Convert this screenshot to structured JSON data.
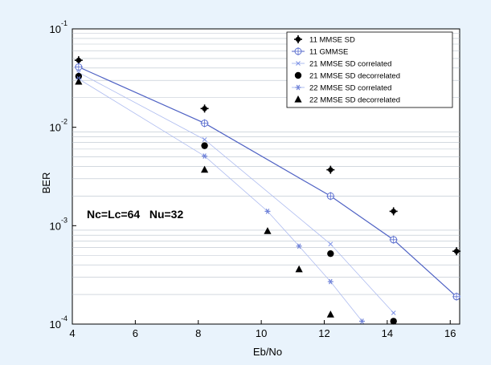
{
  "chart_data": {
    "type": "scatter",
    "title": "",
    "xlabel": "Eb/No",
    "ylabel": "BER",
    "xlim": [
      4,
      16.3
    ],
    "ylim": [
      0.0001,
      0.1
    ],
    "yscale": "log",
    "x_ticks": [
      4,
      6,
      8,
      10,
      12,
      14,
      16
    ],
    "y_ticks": [
      {
        "value": 0.1,
        "base": "10",
        "exp": "-1"
      },
      {
        "value": 0.01,
        "base": "10",
        "exp": "-2"
      },
      {
        "value": 0.001,
        "base": "10",
        "exp": "-3"
      },
      {
        "value": 0.0001,
        "base": "10",
        "exp": "-4"
      }
    ],
    "grid": "horizontal minor",
    "legend_position": "top-right",
    "annotation": "Nc=Lc=64   Nu=32",
    "series": [
      {
        "name": "11  MMSE SD",
        "marker": "plus-filled",
        "line": false,
        "x": [
          4.2,
          8.2,
          12.2,
          14.2,
          16.2
        ],
        "y": [
          0.048,
          0.0155,
          0.0037,
          0.0014,
          0.00055
        ]
      },
      {
        "name": "11  GMMSE",
        "marker": "diamond-open",
        "line": true,
        "x": [
          4.2,
          8.2,
          12.2,
          14.2,
          16.2
        ],
        "y": [
          0.041,
          0.011,
          0.002,
          0.00072,
          0.00019
        ]
      },
      {
        "name": "21  MMSE SD correlated",
        "marker": "x",
        "line": true,
        "x": [
          4.2,
          8.2,
          12.2,
          14.2
        ],
        "y": [
          0.036,
          0.0075,
          0.00065,
          0.00013
        ]
      },
      {
        "name": "21  MMSE SD decorrelated",
        "marker": "circle",
        "line": false,
        "x": [
          4.2,
          8.2,
          12.2,
          14.2
        ],
        "y": [
          0.033,
          0.0065,
          0.00052,
          0.000107
        ]
      },
      {
        "name": "22  MMSE SD correlated",
        "marker": "star",
        "line": true,
        "x": [
          4.2,
          8.2,
          10.2,
          11.2,
          12.2,
          13.2
        ],
        "y": [
          0.031,
          0.0051,
          0.0014,
          0.00062,
          0.00027,
          0.000107
        ]
      },
      {
        "name": "22  MMSE SD decorrelated",
        "marker": "triangle",
        "line": false,
        "x": [
          4.2,
          8.2,
          10.2,
          11.2,
          12.2
        ],
        "y": [
          0.029,
          0.0037,
          0.00088,
          0.00036,
          0.000125
        ]
      }
    ]
  }
}
